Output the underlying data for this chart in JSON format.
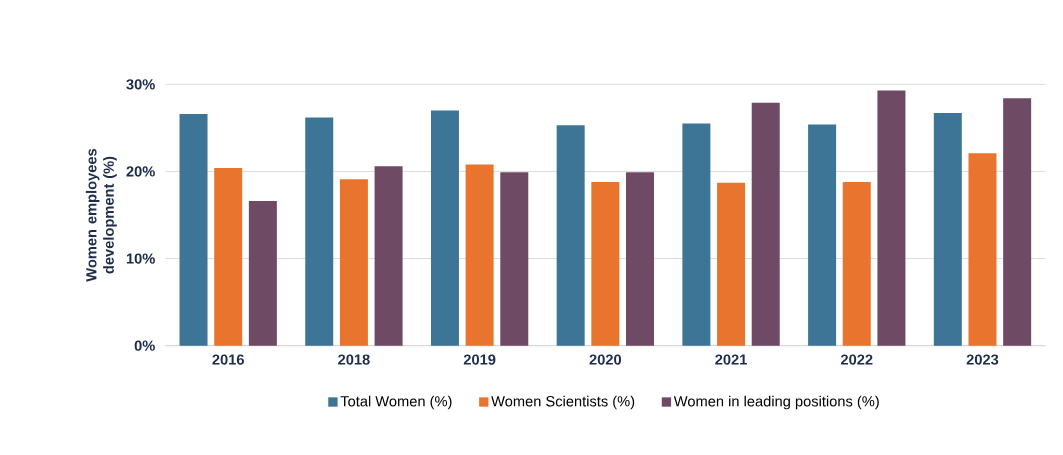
{
  "chart_data": {
    "type": "bar",
    "ylabel": "Women employees development (%)",
    "categories": [
      "2016",
      "2018",
      "2019",
      "2020",
      "2021",
      "2022",
      "2023"
    ],
    "series": [
      {
        "name": "Total Women (%)",
        "color": "#3d7596",
        "values": [
          26.6,
          26.2,
          27.0,
          25.3,
          25.5,
          25.4,
          26.7
        ]
      },
      {
        "name": "Women Scientists (%)",
        "color": "#e8742e",
        "values": [
          20.4,
          19.1,
          20.8,
          18.8,
          18.7,
          18.8,
          22.1
        ]
      },
      {
        "name": "Women in leading positions (%)",
        "color": "#6e4a64",
        "values": [
          16.6,
          20.6,
          19.9,
          19.9,
          27.9,
          29.3,
          28.4
        ]
      }
    ],
    "ylim": [
      0,
      30
    ],
    "yticks": [
      {
        "value": 0,
        "label": "0%"
      },
      {
        "value": 10,
        "label": "10%"
      },
      {
        "value": 20,
        "label": "20%"
      },
      {
        "value": 30,
        "label": "30%"
      }
    ],
    "grid": "y",
    "legend": "bottom"
  }
}
